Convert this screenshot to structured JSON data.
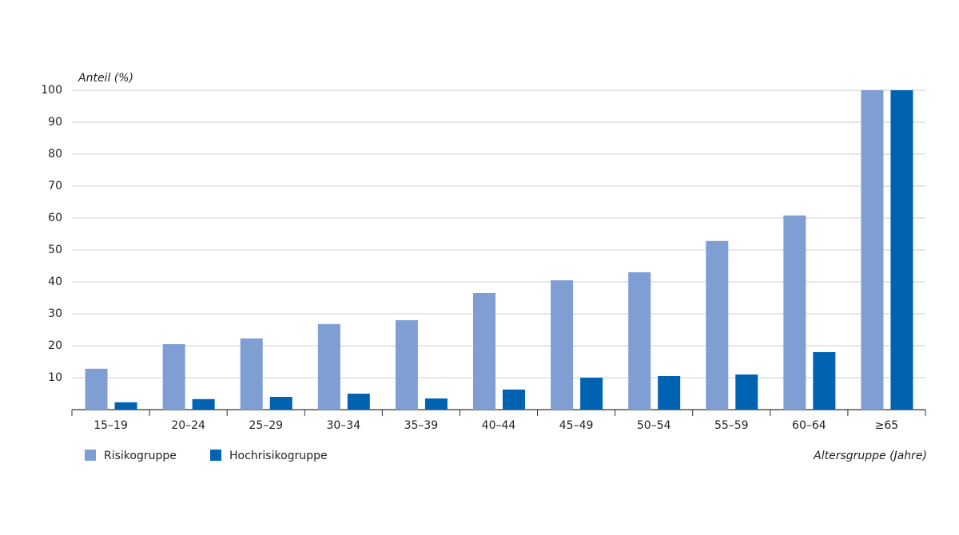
{
  "chart_data": {
    "type": "bar",
    "y_label": "Anteil (%)",
    "x_label": "Altersgruppe (Jahre)",
    "categories": [
      "15–19",
      "20–24",
      "25–29",
      "30–34",
      "35–39",
      "40–44",
      "45–49",
      "50–54",
      "55–59",
      "60–64",
      "≥65"
    ],
    "series": [
      {
        "name": "Risikogruppe",
        "color": "#7f9fd4",
        "values": [
          12.8,
          20.5,
          22.3,
          26.8,
          28,
          36.5,
          40.5,
          43,
          52.8,
          60.8,
          100
        ]
      },
      {
        "name": "Hochrisikogruppe",
        "color": "#0063b1",
        "values": [
          2.3,
          3.3,
          4,
          5,
          3.5,
          6.3,
          10,
          10.5,
          11,
          18,
          100
        ]
      }
    ],
    "ylim": [
      0,
      100
    ],
    "yticks": [
      10,
      20,
      30,
      40,
      50,
      60,
      70,
      80,
      90,
      100
    ],
    "grid": true
  }
}
